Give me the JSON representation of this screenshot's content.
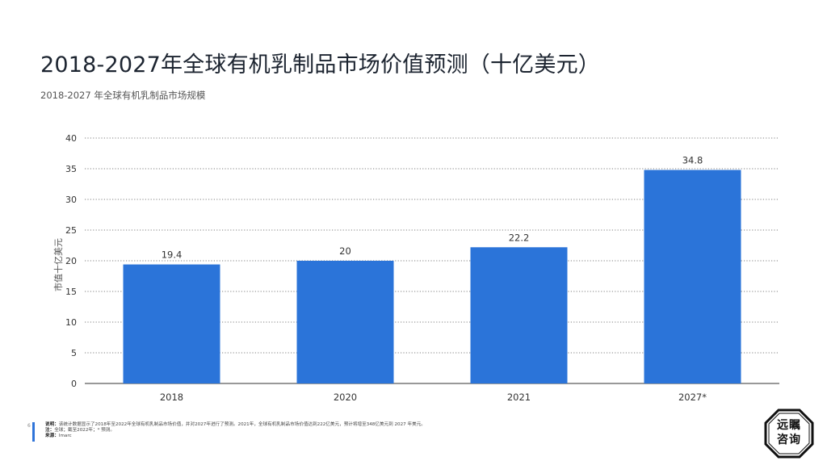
{
  "header": {
    "title": "2018-2027年全球有机乳制品市场价值预测（十亿美元）",
    "subtitle": "2018-2027 年全球有机乳制品市场规模"
  },
  "colors": {
    "bar": "#2b74d9",
    "grid": "#555555",
    "axis": "#333333"
  },
  "chart_data": {
    "type": "bar",
    "categories": [
      "2018",
      "2020",
      "2021",
      "2027*"
    ],
    "values": [
      19.4,
      20,
      22.2,
      34.8
    ],
    "value_labels": [
      "19.4",
      "20",
      "22.2",
      "34.8"
    ],
    "ylabel": "市值十亿美元",
    "ylim": [
      0,
      40
    ],
    "yticks": [
      0,
      5,
      10,
      15,
      20,
      25,
      30,
      35,
      40
    ],
    "grid": true,
    "grid_style": "dotted"
  },
  "footer": {
    "page_number": "6",
    "description_label": "说明：",
    "description": "该统计数据显示了2018年至2022年全球有机乳制品市场价值，并对2027年进行了预测。2021年，全球有机乳制品市场价值达到222亿美元，预计将增至348亿美元到 2027 年美元。",
    "note_label": "注：",
    "note": "全球；截至2022年；* 预测。",
    "source_label": "来源：",
    "source": "Imarc"
  },
  "logo": {
    "line1": "远瞩",
    "line2": "咨询"
  }
}
